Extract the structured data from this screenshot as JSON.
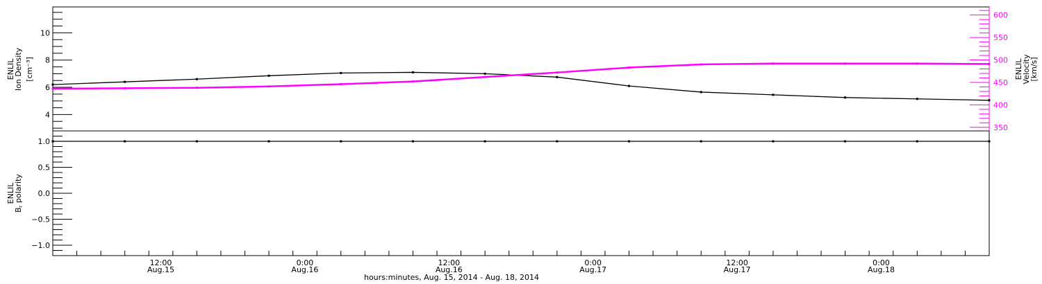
{
  "chart_data": [
    {
      "type": "line",
      "panel": "top",
      "xlabel": "hours:minutes, Aug. 15, 2014 - Aug. 18, 2014",
      "xlim": [
        "2014-08-15 03:00",
        "2014-08-18 09:00"
      ],
      "x_ticks": [
        {
          "time": "2014-08-15 12:00",
          "line1": "12:00",
          "line2": "Aug.15"
        },
        {
          "time": "2014-08-16 00:00",
          "line1": "0:00",
          "line2": "Aug.16"
        },
        {
          "time": "2014-08-16 12:00",
          "line1": "12:00",
          "line2": "Aug.16"
        },
        {
          "time": "2014-08-17 00:00",
          "line1": "0:00",
          "line2": "Aug.17"
        },
        {
          "time": "2014-08-17 12:00",
          "line1": "12:00",
          "line2": "Aug.17"
        },
        {
          "time": "2014-08-18 00:00",
          "line1": "0:00",
          "line2": "Aug.18"
        }
      ],
      "x": [
        "2014-08-15 03:00",
        "2014-08-15 09:00",
        "2014-08-15 15:00",
        "2014-08-15 21:00",
        "2014-08-16 03:00",
        "2014-08-16 09:00",
        "2014-08-16 15:00",
        "2014-08-16 21:00",
        "2014-08-17 03:00",
        "2014-08-17 09:00",
        "2014-08-17 15:00",
        "2014-08-17 21:00",
        "2014-08-18 03:00",
        "2014-08-18 09:00"
      ],
      "left_axis": {
        "label_lines": [
          "ENLIL",
          "Ion Density",
          "[cm⁻³]"
        ],
        "ylim": [
          2.8,
          11.9
        ],
        "ticks": [
          "4",
          "6",
          "8",
          "10"
        ],
        "color": "#000000"
      },
      "right_axis": {
        "label_lines": [
          "ENLIL",
          "Velocity",
          "[km/s]"
        ],
        "ylim": [
          342,
          618
        ],
        "ticks": [
          "350",
          "400",
          "450",
          "500",
          "550",
          "600"
        ],
        "color": "#ff00ff"
      },
      "series": [
        {
          "axis": "left",
          "color": "#000000",
          "values": [
            6.2,
            6.4,
            6.6,
            6.85,
            7.05,
            7.1,
            7.0,
            6.75,
            6.1,
            5.65,
            5.45,
            5.25,
            5.15,
            5.05
          ]
        },
        {
          "axis": "right",
          "color": "#ff00ff",
          "values": [
            436,
            437,
            438,
            441,
            446,
            452,
            462,
            472,
            483,
            490,
            492,
            492,
            492,
            491
          ]
        }
      ]
    },
    {
      "type": "line",
      "panel": "bottom",
      "left_axis": {
        "label_lines": [
          "ENLIL",
          "B",
          "r",
          " polarity"
        ],
        "ylim": [
          -1.2,
          1.2
        ],
        "ticks": [
          "−1.0",
          "−0.5",
          "0.0",
          "0.5",
          "1.0"
        ]
      },
      "series": [
        {
          "axis": "left",
          "color": "#000000",
          "values": [
            1,
            1,
            1,
            1,
            1,
            1,
            1,
            1,
            1,
            1,
            1,
            1,
            1,
            1
          ]
        }
      ]
    }
  ]
}
